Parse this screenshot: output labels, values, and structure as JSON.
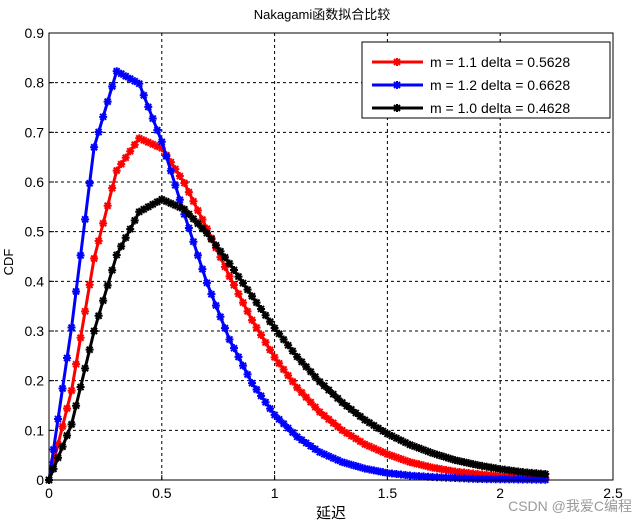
{
  "chart_data": {
    "type": "line",
    "title": "Nakagami函数拟合比较",
    "xlabel": "延迟",
    "ylabel": "CDF",
    "xlim": [
      0,
      2.5
    ],
    "ylim": [
      0,
      0.9
    ],
    "xticks": [
      "0",
      "0.5",
      "1",
      "1.5",
      "2",
      "2.5"
    ],
    "xtick_values": [
      0,
      0.5,
      1,
      1.5,
      2,
      2.5
    ],
    "yticks": [
      "0",
      "0.1",
      "0.2",
      "0.3",
      "0.4",
      "0.5",
      "0.6",
      "0.7",
      "0.8",
      "0.9"
    ],
    "ytick_values": [
      0,
      0.1,
      0.2,
      0.3,
      0.4,
      0.5,
      0.6,
      0.7,
      0.8,
      0.9
    ],
    "grid": true,
    "legend_position": "top-right",
    "x": [
      0,
      0.1,
      0.2,
      0.3,
      0.4,
      0.5,
      0.6,
      0.7,
      0.8,
      0.9,
      1.0,
      1.1,
      1.2,
      1.3,
      1.4,
      1.5,
      1.6,
      1.7,
      1.8,
      1.9,
      2.0,
      2.1,
      2.2
    ],
    "series": [
      {
        "name": "m = 1.1 delta = 0.5628",
        "color": "#ff0000",
        "values": [
          0,
          0.18,
          0.446,
          0.623,
          0.688,
          0.668,
          0.598,
          0.506,
          0.41,
          0.322,
          0.247,
          0.186,
          0.137,
          0.1,
          0.072,
          0.052,
          0.036,
          0.025,
          0.017,
          0.012,
          0.008,
          0.005,
          0.004
        ]
      },
      {
        "name": "m = 1.2 delta = 0.6628",
        "color": "#0000ff",
        "values": [
          0,
          0.307,
          0.67,
          0.823,
          0.798,
          0.681,
          0.535,
          0.397,
          0.283,
          0.195,
          0.131,
          0.087,
          0.056,
          0.036,
          0.023,
          0.014,
          0.009,
          0.006,
          0.004,
          0.002,
          0.0015,
          0.001,
          0.0005
        ]
      },
      {
        "name": "m = 1.0 delta = 0.4628",
        "color": "#000000",
        "values": [
          0,
          0.112,
          0.3,
          0.453,
          0.54,
          0.565,
          0.545,
          0.497,
          0.436,
          0.37,
          0.306,
          0.248,
          0.198,
          0.156,
          0.121,
          0.093,
          0.071,
          0.054,
          0.04,
          0.03,
          0.022,
          0.016,
          0.012
        ]
      }
    ]
  },
  "watermark": "CSDN @我爱C编程"
}
